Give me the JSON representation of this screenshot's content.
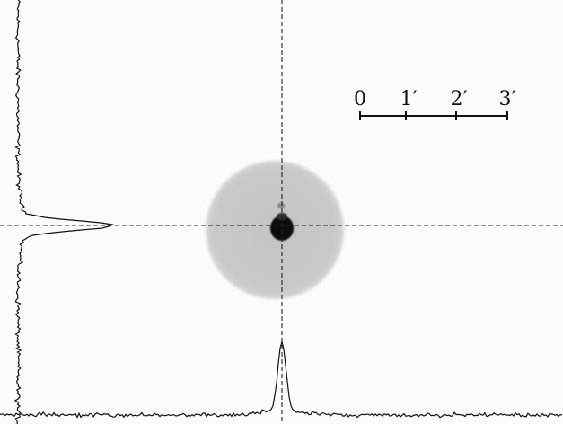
{
  "scale_bar": {
    "ticks": [
      {
        "label": "0"
      },
      {
        "label": "1′"
      },
      {
        "label": "2′"
      },
      {
        "label": "3′"
      }
    ]
  },
  "colors": {
    "background": "#fbfbfd",
    "halo": "#c9c9c9",
    "core": "#0a0a0a",
    "profile_line": "#111111",
    "crosshair": "#222222"
  }
}
